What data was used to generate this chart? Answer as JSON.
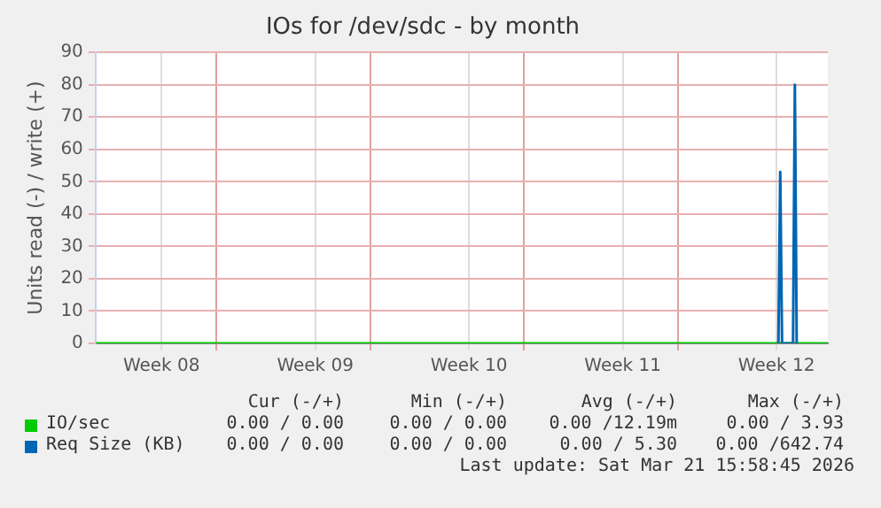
{
  "chart_data": {
    "type": "line",
    "title": "IOs for /dev/sdc - by month",
    "ylabel": "Units read (-) / write (+)",
    "x": [
      "2026-02-17T12:00",
      "2026-03-20T14:00",
      "2026-03-20T16:00",
      "2026-03-20T18:00",
      "2026-03-21T06:00",
      "2026-03-21T08:00",
      "2026-03-21T10:00",
      "2026-03-22T20:00"
    ],
    "xlim": [
      "2026-02-17T12:00",
      "2026-03-22T20:00"
    ],
    "xticks": [
      {
        "value": "2026-02-20T12:00",
        "label": "Week 08"
      },
      {
        "value": "2026-02-23T00:00",
        "label": null
      },
      {
        "value": "2026-02-27T12:00",
        "label": "Week 09"
      },
      {
        "value": "2026-03-02T00:00",
        "label": null
      },
      {
        "value": "2026-03-06T12:00",
        "label": "Week 10"
      },
      {
        "value": "2026-03-09T00:00",
        "label": null
      },
      {
        "value": "2026-03-13T12:00",
        "label": "Week 11"
      },
      {
        "value": "2026-03-16T00:00",
        "label": null
      },
      {
        "value": "2026-03-20T12:00",
        "label": "Week 12"
      }
    ],
    "ylim": [
      0,
      90
    ],
    "yticks": [
      0,
      10,
      20,
      30,
      40,
      50,
      60,
      70,
      80,
      90
    ],
    "series": [
      {
        "name": "IO/sec",
        "color": "#00cc00",
        "values": [
          0,
          0,
          0,
          0,
          0,
          0,
          0,
          0
        ]
      },
      {
        "name": "Req Size (KB)",
        "color": "#0066b3",
        "values": [
          null,
          0,
          53,
          0,
          0,
          80,
          0,
          null
        ]
      }
    ],
    "grid": true,
    "legend": "bottom",
    "marker": "none",
    "line_style": "solid",
    "annotations": [
      "Cur (-/+)",
      "Min (-/+)",
      "Avg (-/+)",
      "Max (-/+)",
      "0.00 / 0.00",
      "0.00 / 0.00",
      "0.00 /12.19m",
      "0.00 / 3.93",
      "0.00 / 0.00",
      "0.00 / 0.00",
      "0.00 / 5.30",
      "0.00 /642.74",
      "Last update: Sat Mar 21 15:58:45 2026"
    ]
  }
}
